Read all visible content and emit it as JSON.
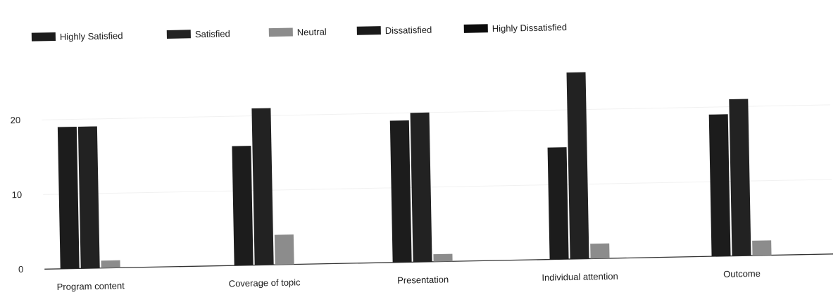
{
  "chart_data": {
    "type": "bar",
    "categories": [
      "Program content",
      "Coverage of topic",
      "Presentation",
      "Individual attention",
      "Outcome"
    ],
    "series": [
      {
        "name": "Highly Satisfied",
        "values": [
          19,
          16,
          19,
          15,
          19
        ]
      },
      {
        "name": "Satisfied",
        "values": [
          19,
          21,
          20,
          25,
          21
        ]
      },
      {
        "name": "Neutral",
        "values": [
          1,
          4,
          1,
          2,
          2
        ]
      },
      {
        "name": "Dissatisfied",
        "values": [
          0,
          0,
          0,
          0,
          0
        ]
      },
      {
        "name": "Highly Dissatisfied",
        "values": [
          0,
          0,
          0,
          0,
          0
        ]
      }
    ],
    "colors": [
      "#1c1c1c",
      "#222222",
      "#8c8c8c",
      "#1a1a1a",
      "#0c0c0c"
    ],
    "y_ticks": [
      0,
      10,
      20
    ],
    "ylim": [
      0,
      26
    ],
    "legend_position": "top",
    "grid": true
  }
}
